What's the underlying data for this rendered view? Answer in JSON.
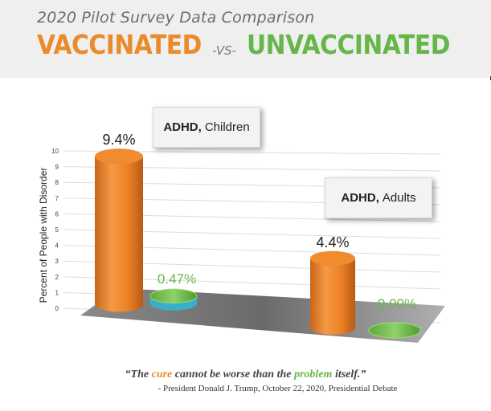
{
  "header": {
    "subtitle": "2020 Pilot Survey Data Comparison",
    "title_left": "VACCINATED",
    "title_vs": "-VS-",
    "title_right": "UNVACCINATED"
  },
  "colors": {
    "vaccinated": "#ea8a2b",
    "unvaccinated": "#67b64a",
    "header_bg": "#efefef"
  },
  "chart_data": {
    "type": "bar",
    "style": "3d-cylinder",
    "categories": [
      "ADHD, Children",
      "ADHD, Adults"
    ],
    "category_labels": [
      {
        "bold": "ADHD,",
        "rest": "Children"
      },
      {
        "bold": "ADHD,",
        "rest": "Adults"
      }
    ],
    "series": [
      {
        "values": [
          9.4,
          4.4
        ],
        "labels": [
          "9.4%",
          "4.4%"
        ],
        "color": "#ea8a2b"
      },
      {
        "values": [
          0.47,
          0.0
        ],
        "labels": [
          "0.47%",
          "0.00%"
        ],
        "color": "#67b64a"
      }
    ],
    "ylabel": "Percent of People with Disorder",
    "ylim": [
      0,
      10
    ],
    "yticks": [
      "0",
      "1",
      "2",
      "3",
      "4",
      "5",
      "6",
      "7",
      "8",
      "9",
      "10"
    ],
    "grid": true
  },
  "quote": {
    "open": "“The ",
    "cure": "cure",
    "mid": " cannot be worse than the ",
    "problem": "problem",
    "close": " itself.”",
    "attribution": "- President Donald J. Trump, October 22, 2020, Presidential Debate"
  }
}
